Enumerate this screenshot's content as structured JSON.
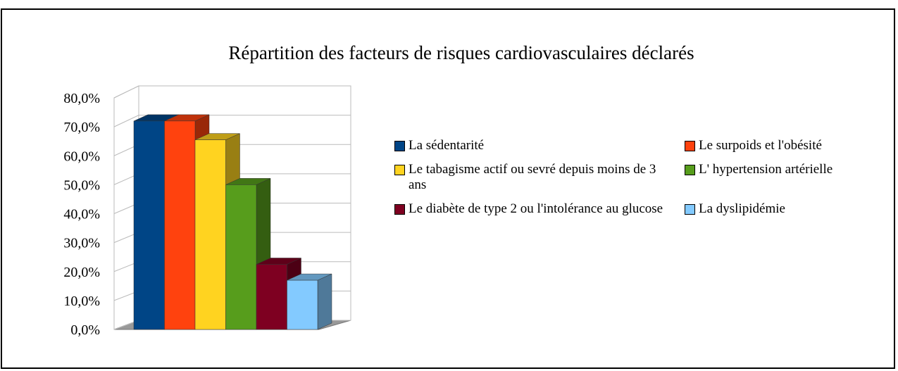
{
  "chart_data": {
    "type": "bar3d",
    "title": "Répartition des facteurs de risques cardiovasculaires déclarés",
    "categories": [
      null
    ],
    "series": [
      {
        "name": "La sédentarité",
        "color": "#004586",
        "values": [
          72
        ]
      },
      {
        "name": "Le surpoids et l'obésité",
        "color": "#ff420e",
        "values": [
          72
        ]
      },
      {
        "name": "Le tabagisme actif ou sevré depuis moins de 3 ans",
        "color": "#ffd320",
        "values": [
          65.5
        ]
      },
      {
        "name": "L' hypertension artérielle",
        "color": "#579d1c",
        "values": [
          50
        ]
      },
      {
        "name": "Le diabète de type 2 ou l'intolérance au glucose",
        "color": "#7e0021",
        "values": [
          22.5
        ]
      },
      {
        "name": "La dyslipidémie",
        "color": "#83caff",
        "values": [
          17
        ]
      }
    ],
    "ylim": [
      0,
      80
    ],
    "yticks": [
      {
        "value": 0,
        "label": "0,0%"
      },
      {
        "value": 10,
        "label": "10,0%"
      },
      {
        "value": 20,
        "label": "20,0%"
      },
      {
        "value": 30,
        "label": "30,0%"
      },
      {
        "value": 40,
        "label": "40,0%"
      },
      {
        "value": 50,
        "label": "50,0%"
      },
      {
        "value": 60,
        "label": "60,0%"
      },
      {
        "value": 70,
        "label": "70,0%"
      },
      {
        "value": 80,
        "label": "80,0%"
      }
    ],
    "grid": true,
    "legend": "right"
  }
}
